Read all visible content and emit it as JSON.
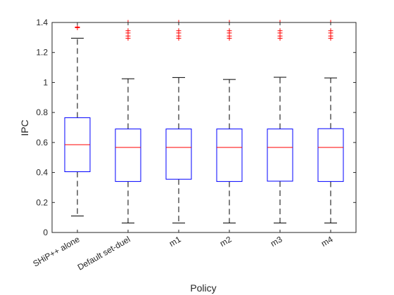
{
  "chart_data": {
    "type": "box",
    "xlabel": "Policy",
    "ylabel": "IPC",
    "ylim": [
      0,
      1.4
    ],
    "yticks": [
      0,
      0.2,
      0.4,
      0.6,
      0.8,
      1,
      1.2,
      1.4
    ],
    "ytick_labels": [
      "0",
      "0.2",
      "0.4",
      "0.6",
      "0.8",
      "1",
      "1.2",
      "1.4"
    ],
    "grid": false,
    "colors": {
      "box": "#0000ff",
      "median": "#ff0000",
      "whisker": "#000000",
      "outlier": "#ff0000",
      "axis": "#262626"
    },
    "categories": [
      "SHiP++ alone",
      "Default set-duel",
      "m1",
      "m2",
      "m3",
      "m4"
    ],
    "boxes": [
      {
        "whisker_low": 0.11,
        "q1": 0.405,
        "median": 0.585,
        "q3": 0.765,
        "whisker_high": 1.295,
        "outliers": [
          1.365,
          1.37
        ]
      },
      {
        "whisker_low": 0.063,
        "q1": 0.34,
        "median": 0.567,
        "q3": 0.69,
        "whisker_high": 1.025,
        "outliers": [
          1.295,
          1.31,
          1.33,
          1.345,
          1.4
        ]
      },
      {
        "whisker_low": 0.063,
        "q1": 0.355,
        "median": 0.567,
        "q3": 0.69,
        "whisker_high": 1.033,
        "outliers": [
          1.295,
          1.31,
          1.33,
          1.345,
          1.4
        ]
      },
      {
        "whisker_low": 0.063,
        "q1": 0.34,
        "median": 0.567,
        "q3": 0.69,
        "whisker_high": 1.02,
        "outliers": [
          1.295,
          1.31,
          1.33,
          1.345,
          1.4
        ]
      },
      {
        "whisker_low": 0.063,
        "q1": 0.342,
        "median": 0.567,
        "q3": 0.69,
        "whisker_high": 1.035,
        "outliers": [
          1.295,
          1.31,
          1.33,
          1.345,
          1.4
        ]
      },
      {
        "whisker_low": 0.063,
        "q1": 0.34,
        "median": 0.567,
        "q3": 0.692,
        "whisker_high": 1.03,
        "outliers": [
          1.295,
          1.31,
          1.33,
          1.345,
          1.4
        ]
      }
    ]
  }
}
